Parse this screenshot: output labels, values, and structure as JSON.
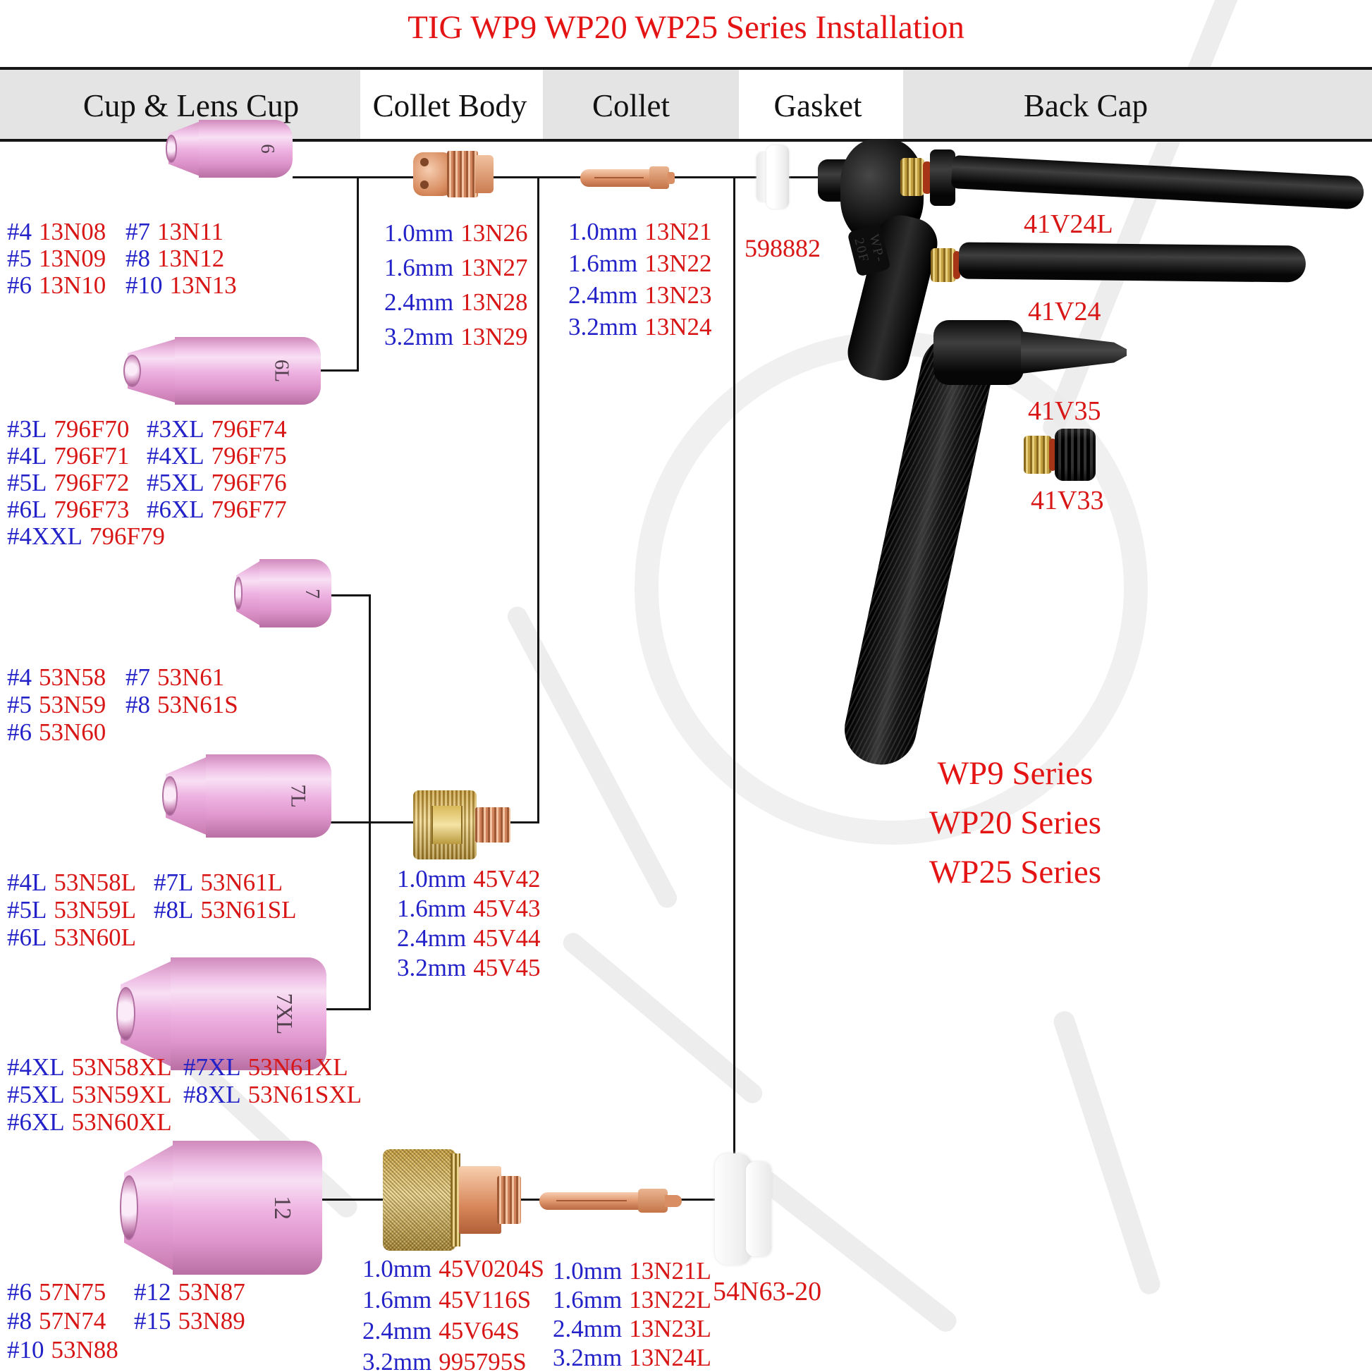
{
  "title": "TIG WP9 WP20 WP25 Series Installation",
  "header": {
    "columns": [
      {
        "label": "Cup & Lens Cup"
      },
      {
        "label": "Collet Body"
      },
      {
        "label": "Collet"
      },
      {
        "label": "Gasket"
      },
      {
        "label": "Back Cap"
      }
    ]
  },
  "cups": [
    {
      "label": "6"
    },
    {
      "label": "6L"
    },
    {
      "label": "7"
    },
    {
      "label": "7L"
    },
    {
      "label": "7XL"
    },
    {
      "label": "12"
    }
  ],
  "blocks": {
    "cup_standard": {
      "rows": [
        [
          [
            "#4",
            "13N08"
          ],
          [
            "#7",
            "13N11"
          ]
        ],
        [
          [
            "#5",
            "13N09"
          ],
          [
            "#8",
            "13N12"
          ]
        ],
        [
          [
            "#6",
            "13N10"
          ],
          [
            "#10",
            "13N13"
          ]
        ]
      ]
    },
    "lens_796F": {
      "rows": [
        [
          [
            "#3L",
            "796F70"
          ],
          [
            "#3XL",
            "796F74"
          ]
        ],
        [
          [
            "#4L",
            "796F71"
          ],
          [
            "#4XL",
            "796F75"
          ]
        ],
        [
          [
            "#5L",
            "796F72"
          ],
          [
            "#5XL",
            "796F76"
          ]
        ],
        [
          [
            "#6L",
            "796F73"
          ],
          [
            "#6XL",
            "796F77"
          ]
        ],
        [
          [
            "#4XXL",
            "796F79"
          ]
        ]
      ]
    },
    "collet_body_standard": {
      "rows": [
        [
          [
            "1.0mm",
            "13N26"
          ]
        ],
        [
          [
            "1.6mm",
            "13N27"
          ]
        ],
        [
          [
            "2.4mm",
            "13N28"
          ]
        ],
        [
          [
            "3.2mm",
            "13N29"
          ]
        ]
      ]
    },
    "collet_standard": {
      "rows": [
        [
          [
            "1.0mm",
            "13N21"
          ]
        ],
        [
          [
            "1.6mm",
            "13N22"
          ]
        ],
        [
          [
            "2.4mm",
            "13N23"
          ]
        ],
        [
          [
            "3.2mm",
            "13N24"
          ]
        ]
      ]
    },
    "cup_53N": {
      "rows": [
        [
          [
            "#4",
            "53N58"
          ],
          [
            "#7",
            "53N61"
          ]
        ],
        [
          [
            "#5",
            "53N59"
          ],
          [
            "#8",
            "53N61S"
          ]
        ],
        [
          [
            "#6",
            "53N60"
          ]
        ]
      ]
    },
    "cup_53NL": {
      "rows": [
        [
          [
            "#4L",
            "53N58L"
          ],
          [
            "#7L",
            "53N61L"
          ]
        ],
        [
          [
            "#5L",
            "53N59L"
          ],
          [
            "#8L",
            "53N61SL"
          ]
        ],
        [
          [
            "#6L",
            "53N60L"
          ]
        ]
      ]
    },
    "gas_lens_45V": {
      "rows": [
        [
          [
            "1.0mm",
            "45V42"
          ]
        ],
        [
          [
            "1.6mm",
            "45V43"
          ]
        ],
        [
          [
            "2.4mm",
            "45V44"
          ]
        ],
        [
          [
            "3.2mm",
            "45V45"
          ]
        ]
      ]
    },
    "cup_53NXL": {
      "rows": [
        [
          [
            "#4XL",
            "53N58XL"
          ],
          [
            "#7XL",
            "53N61XL"
          ]
        ],
        [
          [
            "#5XL",
            "53N59XL"
          ],
          [
            "#8XL",
            "53N61SXL"
          ]
        ],
        [
          [
            "#6XL",
            "53N60XL"
          ]
        ]
      ]
    },
    "cup_large": {
      "rows": [
        [
          [
            "#6",
            "57N75"
          ],
          [
            "#12",
            "53N87"
          ]
        ],
        [
          [
            "#8",
            "57N74"
          ],
          [
            "#15",
            "53N89"
          ]
        ],
        [
          [
            "#10",
            "53N88"
          ]
        ]
      ]
    },
    "gas_lens_large": {
      "rows": [
        [
          [
            "1.0mm",
            "45V0204S"
          ]
        ],
        [
          [
            "1.6mm",
            "45V116S"
          ]
        ],
        [
          [
            "2.4mm",
            "45V64S"
          ]
        ],
        [
          [
            "3.2mm",
            "995795S"
          ]
        ]
      ]
    },
    "collet_long": {
      "rows": [
        [
          [
            "1.0mm",
            "13N21L"
          ]
        ],
        [
          [
            "1.6mm",
            "13N22L"
          ]
        ],
        [
          [
            "2.4mm",
            "13N23L"
          ]
        ],
        [
          [
            "3.2mm",
            "13N24L"
          ]
        ]
      ]
    }
  },
  "gaskets": {
    "top_label": "598882",
    "bottom_label": "54N63-20"
  },
  "back_caps": [
    {
      "label": "41V24L"
    },
    {
      "label": "41V24"
    },
    {
      "label": "41V35"
    },
    {
      "label": "41V33"
    }
  ],
  "series": [
    {
      "label": "WP9 Series"
    },
    {
      "label": "WP20 Series"
    },
    {
      "label": "WP25 Series"
    }
  ],
  "torch": {
    "engraving": "WP-20F"
  },
  "colors": {
    "part_number_red": "#d81616",
    "size_blue": "#2222c8",
    "title_red": "#e41414",
    "cup_pink": "#eaa9de",
    "brass": "#d7b35c",
    "copper": "#dd8a5e",
    "header_gray": "#e4e4e4"
  }
}
